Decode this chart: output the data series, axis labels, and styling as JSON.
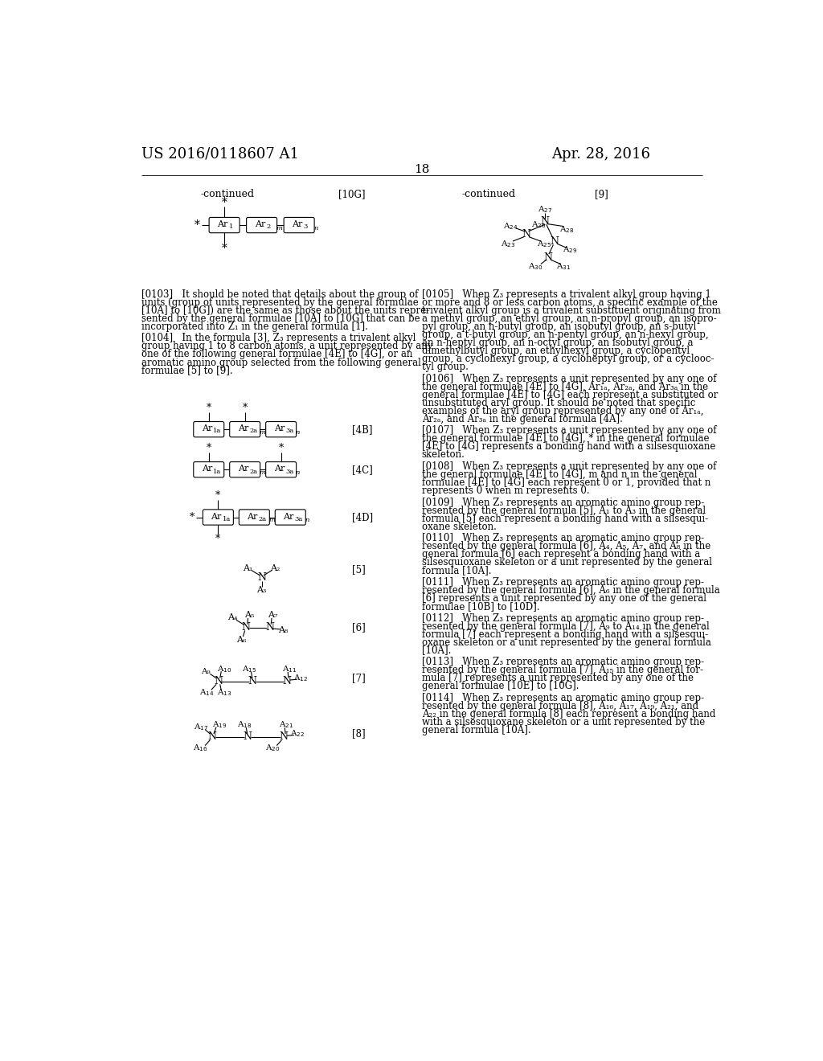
{
  "bg_color": "#ffffff",
  "header_left": "US 2016/0118607 A1",
  "header_right": "Apr. 28, 2016",
  "page_number": "18"
}
